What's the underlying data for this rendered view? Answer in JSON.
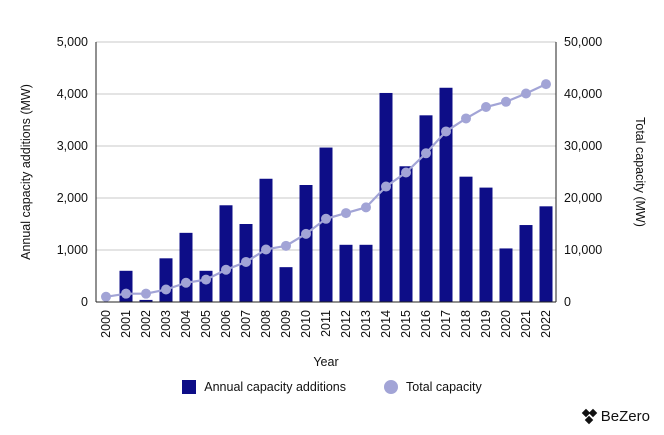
{
  "chart_data": {
    "type": "bar+line",
    "categories": [
      "2000",
      "2001",
      "2002",
      "2003",
      "2004",
      "2005",
      "2006",
      "2007",
      "2008",
      "2009",
      "2010",
      "2011",
      "2012",
      "2013",
      "2014",
      "2015",
      "2016",
      "2017",
      "2018",
      "2019",
      "2020",
      "2021",
      "2022"
    ],
    "series": [
      {
        "name": "Annual capacity additions",
        "type": "bar",
        "axis": "left",
        "values": [
          0,
          600,
          40,
          840,
          1330,
          600,
          1860,
          1500,
          2370,
          670,
          2250,
          2970,
          1100,
          1100,
          4020,
          2610,
          3590,
          4120,
          2410,
          2200,
          1030,
          1480,
          1840
        ]
      },
      {
        "name": "Total capacity",
        "type": "line",
        "axis": "right",
        "values": [
          1000,
          1600,
          1600,
          2400,
          3700,
          4300,
          6200,
          7700,
          10100,
          10800,
          13100,
          16000,
          17100,
          18200,
          22200,
          24900,
          28600,
          32800,
          35300,
          37500,
          38500,
          40100,
          41900
        ]
      }
    ],
    "xlabel": "Year",
    "ylabel_left": "Annual capacity additions (MW)",
    "ylabel_right": "Total capacity (MW)",
    "ylim_left": [
      0,
      5000
    ],
    "ylim_right": [
      0,
      50000
    ],
    "yticks_left": [
      "0",
      "1,000",
      "2,000",
      "3,000",
      "4,000",
      "5,000"
    ],
    "yticks_right": [
      "0",
      "10,000",
      "20,000",
      "30,000",
      "40,000",
      "50,000"
    ],
    "grid": "horizontal",
    "legend_position": "bottom-center",
    "colors": {
      "bar": "#0d0d87",
      "line": "#a2a4d6",
      "grid": "#c8c8c8",
      "axis": "#222222"
    }
  },
  "legend": {
    "bars_label": "Annual capacity additions",
    "line_label": "Total capacity"
  },
  "brand": {
    "name": "BeZero"
  }
}
